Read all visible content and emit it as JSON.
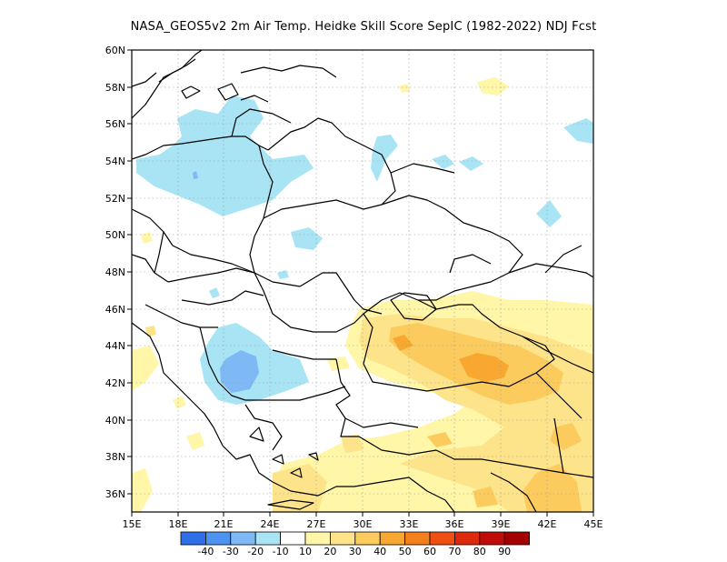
{
  "title": "NASA_GEOS5v2  2m Air Temp. Heidke Skill Score SepIC (1982-2022) NDJ Fcst",
  "lat_labels": [
    "60N",
    "58N",
    "56N",
    "54N",
    "52N",
    "50N",
    "48N",
    "46N",
    "44N",
    "42N",
    "40N",
    "38N",
    "36N"
  ],
  "lon_labels": [
    "15E",
    "18E",
    "21E",
    "24E",
    "27E",
    "30E",
    "33E",
    "36E",
    "39E",
    "42E",
    "45E"
  ],
  "colorbar": {
    "labels": [
      "-40",
      "-30",
      "-20",
      "-10",
      "10",
      "20",
      "30",
      "40",
      "50",
      "60",
      "70",
      "80",
      "90"
    ],
    "colors": [
      "#2f6fe8",
      "#4c93f2",
      "#7fb9f5",
      "#a9e4f5",
      "#ffffff",
      "#fff6a8",
      "#fde48a",
      "#fccb5e",
      "#f8a830",
      "#f57f1a",
      "#ef4f10",
      "#de2a0c",
      "#c00c08",
      "#a30000"
    ]
  },
  "colors": {
    "land_border": "#000000",
    "grid": "#9a9a9a"
  }
}
